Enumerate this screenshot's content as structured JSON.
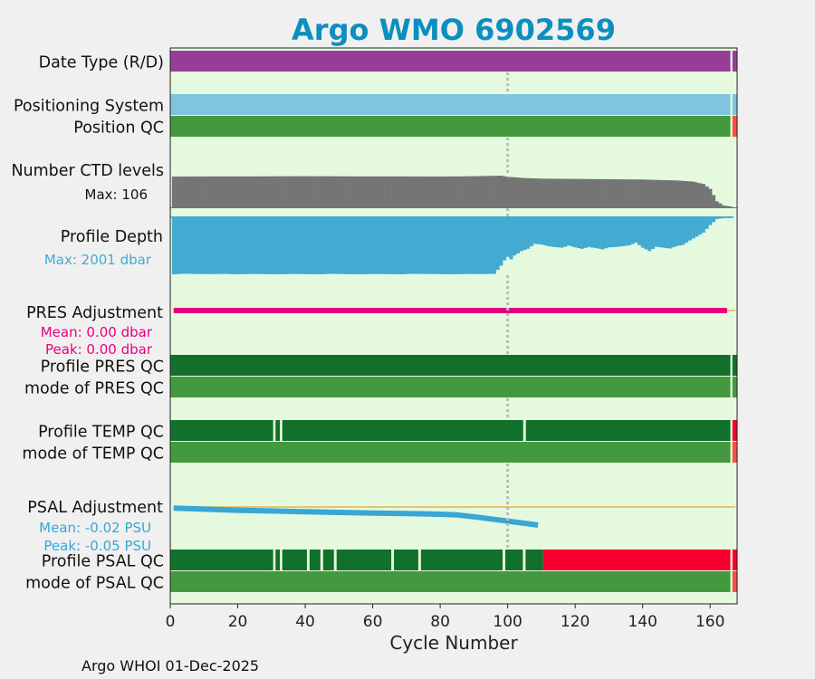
{
  "chart_data": {
    "type": "bar",
    "title": "Argo WMO 6902569",
    "xlabel": "Cycle Number",
    "xlim": [
      0,
      168
    ],
    "xticks": [
      "0",
      "20",
      "40",
      "60",
      "80",
      "100",
      "120",
      "140",
      "160"
    ],
    "xtick_values": [
      0,
      20,
      40,
      60,
      80,
      100,
      120,
      140,
      160
    ],
    "grid": false,
    "reference_cycle": 100,
    "footer": "Argo WHOI 01-Dec-2025",
    "colors": {
      "background": "#e5f9df",
      "title": "#0b8fbe",
      "data_type": "#983d97",
      "positioning": "#7fc5df",
      "qc_good": "#117029",
      "qc_mode": "#44993f",
      "qc_bad": "#f7002d",
      "ctd": "#757575",
      "depth": "#43abd1",
      "pres": "#e8007f",
      "psal": "#39a6d3",
      "zero_line": "#e6b34a"
    },
    "rows": [
      {
        "label": "Date Type (R/D)",
        "segments": [
          {
            "from": 0,
            "to": 166,
            "color": "#983d97"
          },
          {
            "from": 166.6,
            "to": 168,
            "color": "#983d97"
          }
        ]
      },
      {
        "label": "Positioning System",
        "segments": [
          {
            "from": 0,
            "to": 166,
            "color": "#7fc5df"
          },
          {
            "from": 166.6,
            "to": 168,
            "color": "#7fc5df"
          }
        ]
      },
      {
        "label": "Position QC",
        "segments": [
          {
            "from": 0,
            "to": 166,
            "color": "#44993f"
          },
          {
            "from": 166.6,
            "to": 168,
            "color": "#f75040"
          }
        ]
      },
      {
        "label": "Profile PRES QC",
        "segments": [
          {
            "from": 0,
            "to": 166,
            "color": "#117029"
          },
          {
            "from": 166.6,
            "to": 168,
            "color": "#117029"
          }
        ]
      },
      {
        "label": "mode of PRES QC",
        "segments": [
          {
            "from": 0,
            "to": 166,
            "color": "#44993f"
          },
          {
            "from": 166.6,
            "to": 168,
            "color": "#44993f"
          }
        ]
      },
      {
        "label": "Profile TEMP QC",
        "segments": [
          {
            "from": 0,
            "to": 30.5,
            "color": "#117029"
          },
          {
            "from": 31.2,
            "to": 32.5,
            "color": "#117029"
          },
          {
            "from": 33.2,
            "to": 104.6,
            "color": "#117029"
          },
          {
            "from": 105.4,
            "to": 166,
            "color": "#117029"
          },
          {
            "from": 166.6,
            "to": 168,
            "color": "#f7002d"
          }
        ]
      },
      {
        "label": "mode of TEMP QC",
        "segments": [
          {
            "from": 0,
            "to": 166,
            "color": "#44993f"
          },
          {
            "from": 166.6,
            "to": 168,
            "color": "#f75040"
          }
        ]
      },
      {
        "label": "Profile PSAL QC",
        "segments": [
          {
            "from": 0,
            "to": 30.5,
            "color": "#117029"
          },
          {
            "from": 31.2,
            "to": 32.5,
            "color": "#117029"
          },
          {
            "from": 33.2,
            "to": 40.5,
            "color": "#117029"
          },
          {
            "from": 41.3,
            "to": 44.5,
            "color": "#117029"
          },
          {
            "from": 45.3,
            "to": 48.5,
            "color": "#117029"
          },
          {
            "from": 49.3,
            "to": 65.5,
            "color": "#117029"
          },
          {
            "from": 66.3,
            "to": 73.5,
            "color": "#117029"
          },
          {
            "from": 74.3,
            "to": 98.5,
            "color": "#117029"
          },
          {
            "from": 99.3,
            "to": 104.5,
            "color": "#117029"
          },
          {
            "from": 105.3,
            "to": 110.5,
            "color": "#117029"
          },
          {
            "from": 110.5,
            "to": 166,
            "color": "#f7002d"
          },
          {
            "from": 166.6,
            "to": 168,
            "color": "#f7002d"
          }
        ]
      },
      {
        "label": "mode of PSAL QC",
        "segments": [
          {
            "from": 0,
            "to": 166,
            "color": "#44993f"
          },
          {
            "from": 166.6,
            "to": 168,
            "color": "#f75040"
          }
        ]
      }
    ],
    "ctd": {
      "label": "Number CTD levels",
      "max_label": "Max: 106",
      "max": 106,
      "cycles": [
        1,
        40,
        80,
        90,
        98,
        100,
        105,
        110,
        120,
        130,
        140,
        150,
        155,
        158,
        160,
        162,
        164,
        166
      ],
      "values": [
        103,
        104,
        103,
        104,
        106,
        102,
        98,
        96,
        95,
        94,
        93,
        90,
        86,
        78,
        62,
        20,
        6,
        3
      ]
    },
    "depth": {
      "label": "Profile Depth",
      "max_label": "Max: 2001 dbar",
      "max": 2001,
      "cycles": [
        1,
        4,
        8,
        12,
        16,
        20,
        24,
        28,
        32,
        36,
        40,
        44,
        48,
        52,
        56,
        60,
        64,
        68,
        72,
        76,
        80,
        84,
        88,
        92,
        96,
        97,
        98,
        99,
        100,
        101,
        102,
        103,
        104,
        106,
        108,
        110,
        112,
        114,
        116,
        118,
        120,
        122,
        124,
        126,
        128,
        130,
        132,
        134,
        136,
        138,
        140,
        142,
        144,
        146,
        148,
        150,
        152,
        154,
        156,
        158,
        160,
        162,
        164,
        166
      ],
      "values": [
        2001,
        1980,
        1990,
        1995,
        1985,
        2001,
        1990,
        1995,
        2001,
        1990,
        1995,
        2001,
        1985,
        1995,
        2001,
        1990,
        1995,
        2001,
        1985,
        1990,
        1995,
        2001,
        1990,
        1995,
        1985,
        1850,
        1700,
        1520,
        1400,
        1480,
        1350,
        1280,
        1200,
        1120,
        950,
        970,
        1030,
        1060,
        1080,
        1010,
        1070,
        1120,
        1060,
        1090,
        1140,
        1070,
        1060,
        1030,
        1000,
        910,
        1080,
        1200,
        1050,
        1080,
        1110,
        1030,
        980,
        830,
        700,
        560,
        300,
        90,
        60,
        60
      ]
    },
    "pres": {
      "label": "PRES Adjustment",
      "mean_label": "Mean: 0.00 dbar",
      "peak_label": "Peak: 0.00 dbar",
      "cycles": [
        1,
        165
      ],
      "values": [
        0.0,
        0.0
      ]
    },
    "psal": {
      "label": "PSAL Adjustment",
      "mean_label": "Mean: -0.02 PSU",
      "peak_label": "Peak: -0.05 PSU",
      "cycles": [
        1,
        10,
        20,
        30,
        40,
        50,
        60,
        70,
        80,
        85,
        90,
        95,
        100,
        105,
        109
      ],
      "values": [
        -0.003,
        -0.006,
        -0.009,
        -0.011,
        -0.013,
        -0.015,
        -0.017,
        -0.018,
        -0.02,
        -0.022,
        -0.027,
        -0.033,
        -0.039,
        -0.045,
        -0.05
      ]
    }
  }
}
